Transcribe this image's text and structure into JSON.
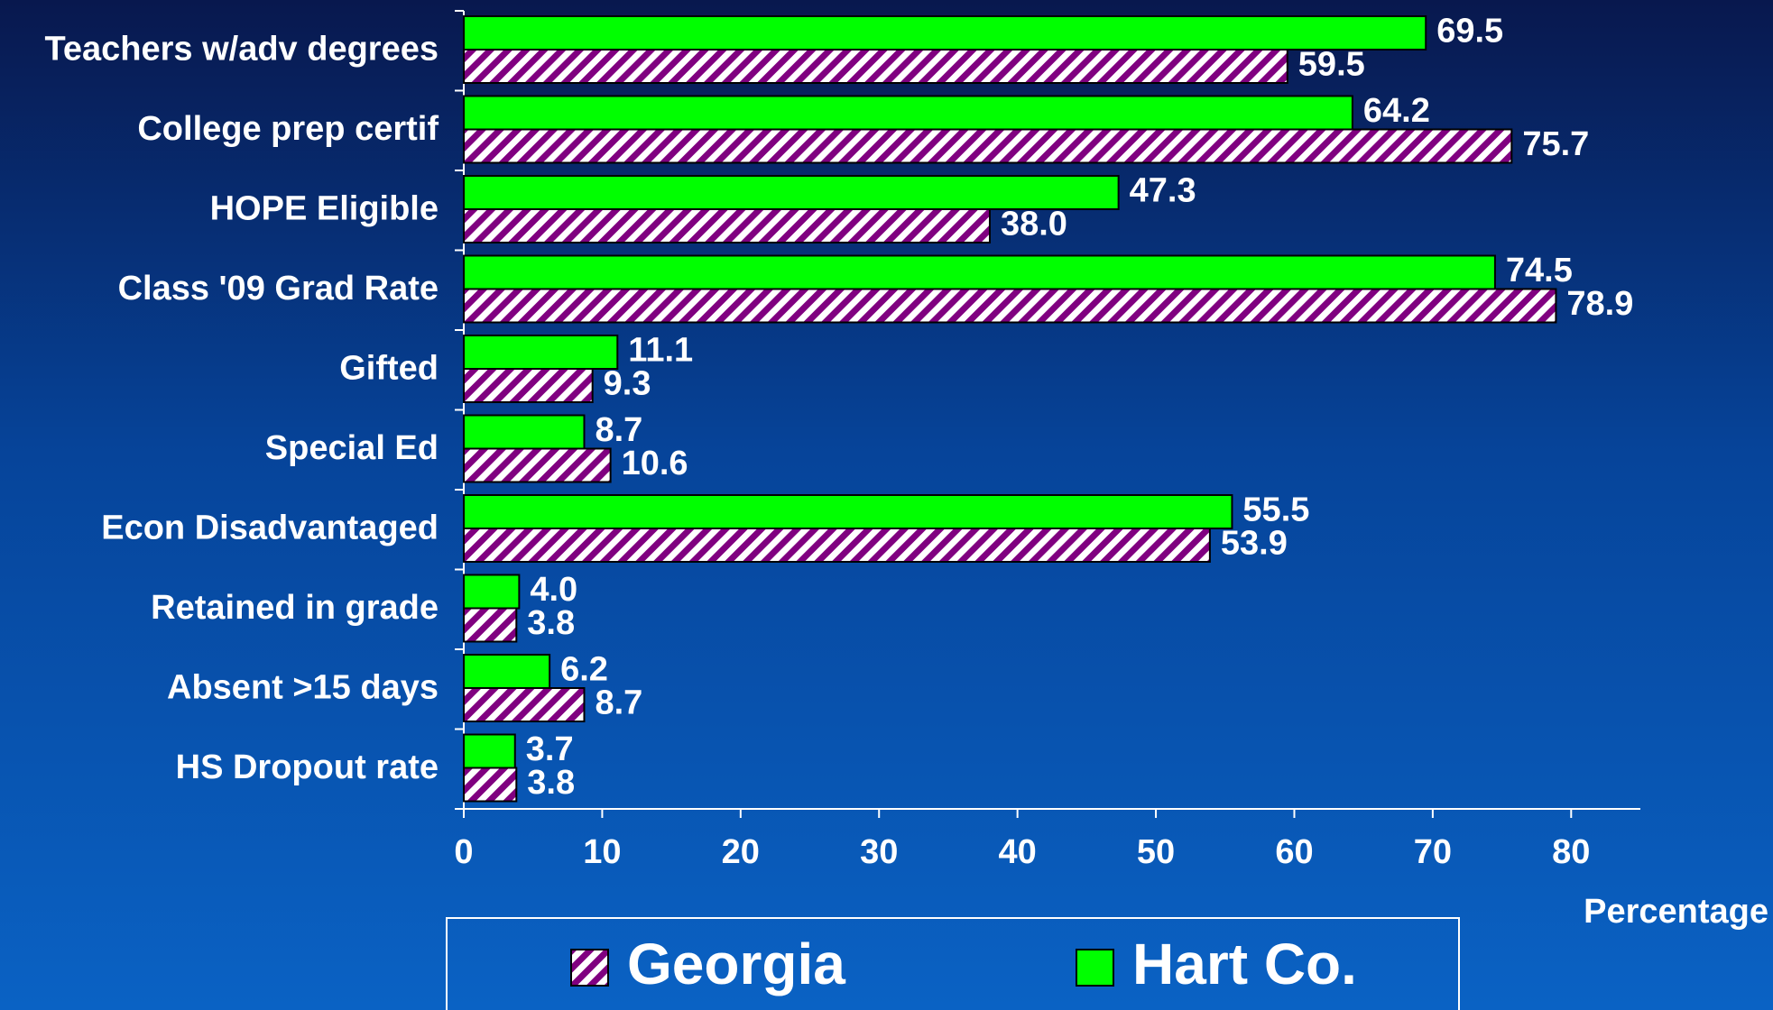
{
  "chart_data": {
    "type": "hbar",
    "categories": [
      "Teachers w/adv degrees",
      "College prep certif",
      "HOPE Eligible",
      "Class '09 Grad Rate",
      "Gifted",
      "Special Ed",
      "Econ Disadvantaged",
      "Retained in grade",
      "Absent >15 days",
      "HS Dropout rate"
    ],
    "series": [
      {
        "name": "Hart Co.",
        "color": "#00ff00",
        "values": [
          69.5,
          64.2,
          47.3,
          74.5,
          11.1,
          8.7,
          55.5,
          4.0,
          6.2,
          3.7
        ],
        "value_labels": [
          "69.5",
          "64.2",
          "47.3",
          "74.5",
          "11.1",
          "8.7",
          "55.5",
          "4.0",
          "6.2",
          "3.7"
        ]
      },
      {
        "name": "Georgia",
        "color": "#800080",
        "hatch": true,
        "values": [
          59.5,
          75.7,
          38.0,
          78.9,
          9.3,
          10.6,
          53.9,
          3.8,
          8.7,
          3.8
        ],
        "value_labels": [
          "59.5",
          "75.7",
          "38.0",
          "78.9",
          "9.3",
          "10.6",
          "53.9",
          "3.8",
          "8.7",
          "3.8"
        ]
      }
    ],
    "xlabel": "Percentage",
    "xlim": [
      0,
      85
    ],
    "xticks": [
      0,
      10,
      20,
      30,
      40,
      50,
      60,
      70,
      80
    ],
    "legend": "bottom"
  }
}
